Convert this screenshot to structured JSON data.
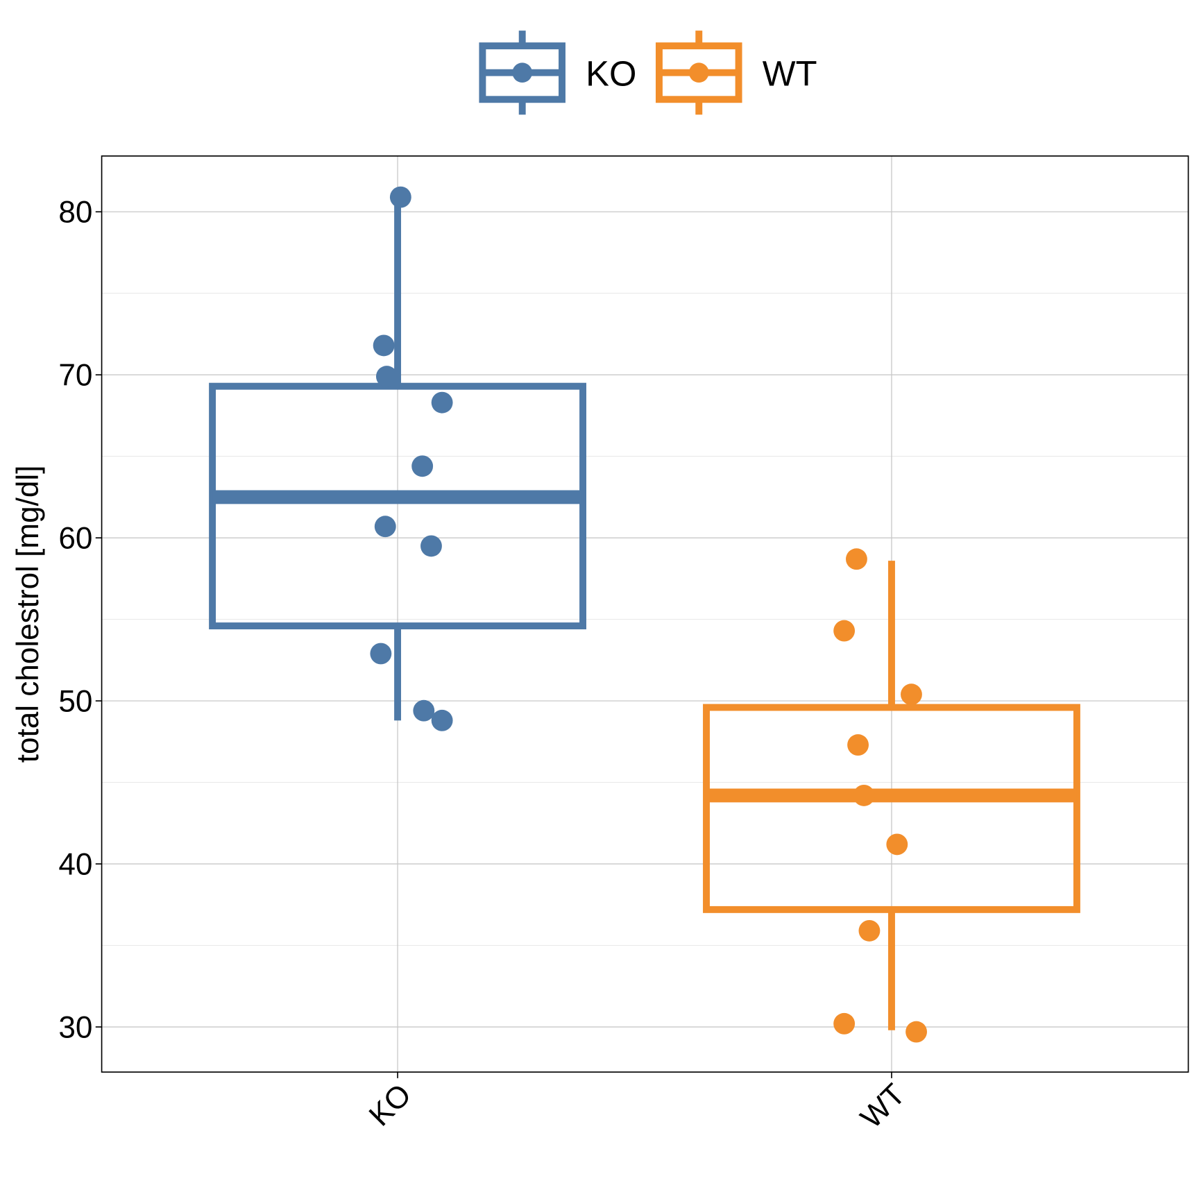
{
  "chart_data": {
    "type": "box",
    "title": "",
    "xlabel": "",
    "ylabel": "total cholestrol [mg/dl]",
    "ylim": [
      27.2,
      83.4
    ],
    "yticks": [
      30,
      40,
      50,
      60,
      70,
      80
    ],
    "grid": true,
    "legend_position": "top",
    "categories": [
      "KO",
      "WT"
    ],
    "series": [
      {
        "name": "KO",
        "color": "#4e79a7",
        "box": {
          "lower_whisker": 48.8,
          "q1": 54.6,
          "median": 62.5,
          "q3": 69.3,
          "upper_whisker": 80.8
        },
        "points": [
          {
            "y": 80.9,
            "jitter": 0.006
          },
          {
            "y": 71.8,
            "jitter": -0.028
          },
          {
            "y": 69.9,
            "jitter": -0.022
          },
          {
            "y": 68.3,
            "jitter": 0.09
          },
          {
            "y": 64.4,
            "jitter": 0.05
          },
          {
            "y": 60.7,
            "jitter": -0.025
          },
          {
            "y": 59.5,
            "jitter": 0.068
          },
          {
            "y": 52.9,
            "jitter": -0.034
          },
          {
            "y": 49.4,
            "jitter": 0.053
          },
          {
            "y": 48.8,
            "jitter": 0.09
          }
        ]
      },
      {
        "name": "WT",
        "color": "#f28e2b",
        "box": {
          "lower_whisker": 29.8,
          "q1": 37.2,
          "median": 44.2,
          "q3": 49.6,
          "upper_whisker": 58.6
        },
        "points": [
          {
            "y": 58.7,
            "jitter": -0.071
          },
          {
            "y": 54.3,
            "jitter": -0.096
          },
          {
            "y": 50.4,
            "jitter": 0.04
          },
          {
            "y": 47.3,
            "jitter": -0.068
          },
          {
            "y": 44.2,
            "jitter": -0.056
          },
          {
            "y": 41.2,
            "jitter": 0.011
          },
          {
            "y": 35.9,
            "jitter": -0.045
          },
          {
            "y": 30.2,
            "jitter": -0.096
          },
          {
            "y": 29.7,
            "jitter": 0.05
          }
        ]
      }
    ]
  }
}
